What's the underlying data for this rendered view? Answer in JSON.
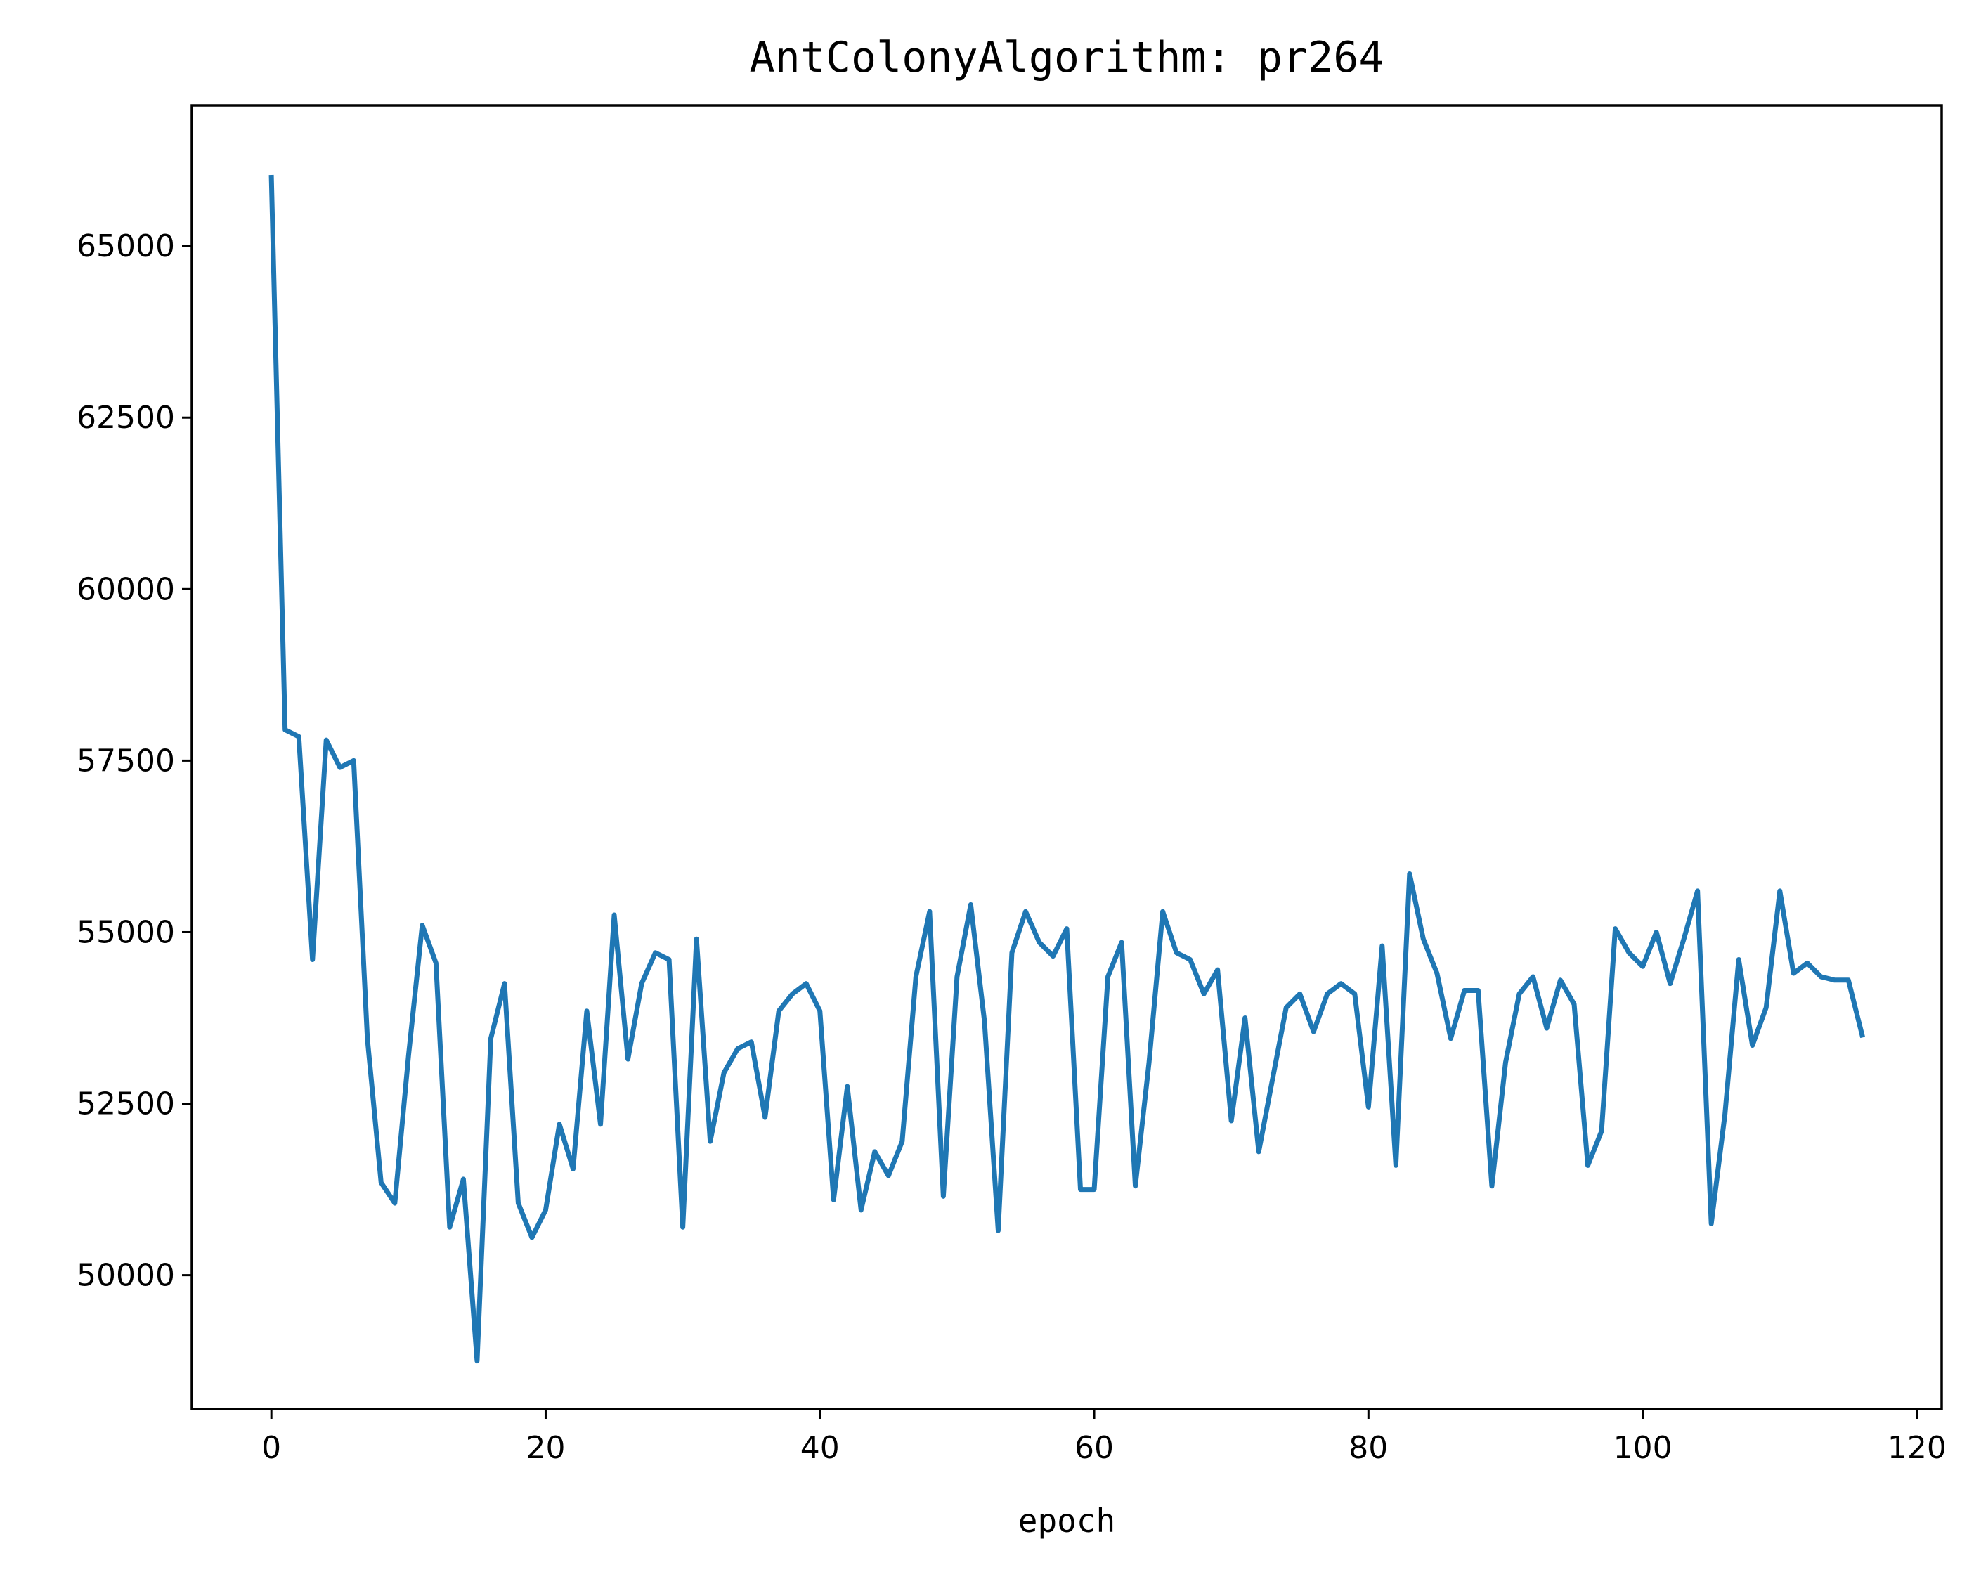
{
  "chart_data": {
    "type": "line",
    "title": "AntColonyAlgorithm: pr264",
    "xlabel": "epoch",
    "ylabel": "",
    "xlim": [
      -5.8,
      121.8
    ],
    "ylim": [
      48050,
      67050
    ],
    "xticks": [
      0,
      20,
      40,
      60,
      80,
      100,
      120
    ],
    "yticks": [
      50000,
      52500,
      55000,
      57500,
      60000,
      62500,
      65000
    ],
    "grid": false,
    "legend": "none",
    "line_color": "#1f77b4",
    "series": [
      {
        "x": [
          0,
          1,
          2,
          3,
          4,
          5,
          6,
          7,
          8,
          9,
          10,
          11,
          12,
          13,
          14,
          15,
          16,
          17,
          18,
          19,
          20,
          21,
          22,
          23,
          24,
          25,
          26,
          27,
          28,
          29,
          30,
          31,
          32,
          33,
          34,
          35,
          36,
          37,
          38,
          39,
          40,
          41,
          42,
          43,
          44,
          45,
          46,
          47,
          48,
          49,
          50,
          51,
          52,
          53,
          54,
          55,
          56,
          57,
          58,
          59,
          60,
          61,
          62,
          63,
          64,
          65,
          66,
          67,
          68,
          69,
          70,
          71,
          72,
          73,
          74,
          75,
          76,
          77,
          78,
          79,
          80,
          81,
          82,
          83,
          84,
          85,
          86,
          87,
          88,
          89,
          90,
          91,
          92,
          93,
          94,
          95,
          96,
          97,
          98,
          99,
          100,
          101,
          102,
          103,
          104,
          105,
          106,
          107,
          108,
          109,
          110,
          111,
          112,
          113,
          114,
          115,
          116
        ],
        "values": [
          66000,
          57950,
          57850,
          54600,
          57800,
          57400,
          57500,
          53450,
          51350,
          51050,
          53200,
          55100,
          54550,
          50700,
          51400,
          48750,
          53450,
          54250,
          51050,
          50550,
          50950,
          52200,
          51550,
          53850,
          52200,
          55250,
          53150,
          54250,
          54700,
          54600,
          50700,
          54900,
          51950,
          52950,
          53300,
          53400,
          52300,
          53850,
          54100,
          54250,
          53850,
          51100,
          52750,
          50950,
          51800,
          51450,
          51950,
          54350,
          55300,
          51150,
          54350,
          55400,
          53700,
          50650,
          54700,
          55300,
          54850,
          54650,
          55050,
          51250,
          51250,
          54350,
          54850,
          51300,
          53100,
          55300,
          54700,
          54600,
          54100,
          54450,
          52250,
          53750,
          51800,
          52850,
          53900,
          54100,
          53550,
          54100,
          54250,
          54100,
          52450,
          54800,
          51600,
          55850,
          54900,
          54400,
          53450,
          54150,
          54150,
          51300,
          53100,
          54100,
          54350,
          53600,
          54300,
          53950,
          51600,
          52100,
          55050,
          54700,
          54500,
          55000,
          54250,
          54900,
          55600,
          50750,
          52350,
          54600,
          53350,
          53900,
          55600,
          54400,
          54550,
          54350,
          54300,
          54300,
          53500
        ]
      }
    ]
  }
}
